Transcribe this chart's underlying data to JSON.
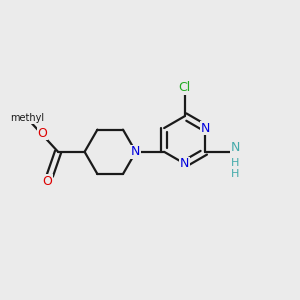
{
  "background_color": "#ebebeb",
  "bond_color": "#1a1a1a",
  "bond_width": 1.6,
  "atom_colors": {
    "N_blue": "#0000dd",
    "O_red": "#dd0000",
    "Cl_green": "#22aa22",
    "C": "#1a1a1a",
    "NH_teal": "#44aaaa"
  },
  "figsize": [
    3.0,
    3.0
  ],
  "dpi": 100,
  "xlim": [
    0.0,
    6.5
  ],
  "ylim": [
    -0.5,
    5.5
  ]
}
